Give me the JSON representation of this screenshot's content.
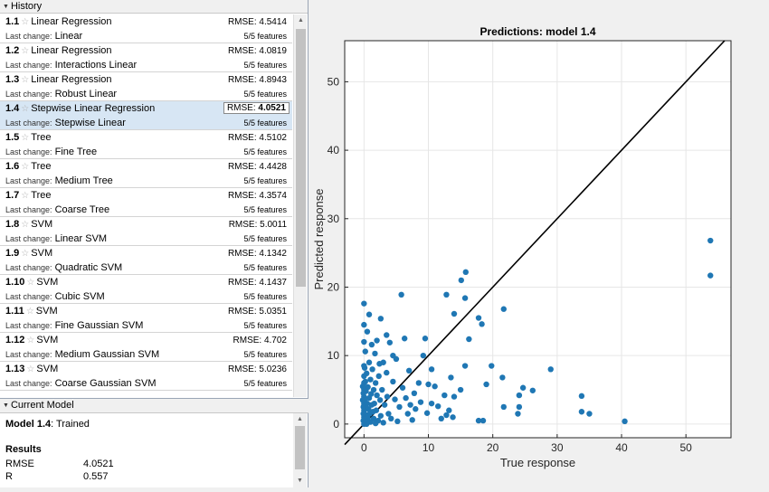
{
  "history": {
    "title": "History",
    "items": [
      {
        "num": "1.1",
        "name": "Linear Regression",
        "last_change_label": "Last change:",
        "last_change": "Linear",
        "rmse_label": "RMSE:",
        "rmse": "4.5414",
        "features": "5/5 features"
      },
      {
        "num": "1.2",
        "name": "Linear Regression",
        "last_change_label": "Last change:",
        "last_change": "Interactions Linear",
        "rmse_label": "RMSE:",
        "rmse": "4.0819",
        "features": "5/5 features"
      },
      {
        "num": "1.3",
        "name": "Linear Regression",
        "last_change_label": "Last change:",
        "last_change": "Robust Linear",
        "rmse_label": "RMSE:",
        "rmse": "4.8943",
        "features": "5/5 features"
      },
      {
        "num": "1.4",
        "name": "Stepwise Linear Regression",
        "last_change_label": "Last change:",
        "last_change": "Stepwise Linear",
        "rmse_label": "RMSE:",
        "rmse": "4.0521",
        "features": "5/5 features"
      },
      {
        "num": "1.5",
        "name": "Tree",
        "last_change_label": "Last change:",
        "last_change": "Fine Tree",
        "rmse_label": "RMSE:",
        "rmse": "4.5102",
        "features": "5/5 features"
      },
      {
        "num": "1.6",
        "name": "Tree",
        "last_change_label": "Last change:",
        "last_change": "Medium Tree",
        "rmse_label": "RMSE:",
        "rmse": "4.4428",
        "features": "5/5 features"
      },
      {
        "num": "1.7",
        "name": "Tree",
        "last_change_label": "Last change:",
        "last_change": "Coarse Tree",
        "rmse_label": "RMSE:",
        "rmse": "4.3574",
        "features": "5/5 features"
      },
      {
        "num": "1.8",
        "name": "SVM",
        "last_change_label": "Last change:",
        "last_change": "Linear SVM",
        "rmse_label": "RMSE:",
        "rmse": "5.0011",
        "features": "5/5 features"
      },
      {
        "num": "1.9",
        "name": "SVM",
        "last_change_label": "Last change:",
        "last_change": "Quadratic SVM",
        "rmse_label": "RMSE:",
        "rmse": "4.1342",
        "features": "5/5 features"
      },
      {
        "num": "1.10",
        "name": "SVM",
        "last_change_label": "Last change:",
        "last_change": "Cubic SVM",
        "rmse_label": "RMSE:",
        "rmse": "4.1437",
        "features": "5/5 features"
      },
      {
        "num": "1.11",
        "name": "SVM",
        "last_change_label": "Last change:",
        "last_change": "Fine Gaussian SVM",
        "rmse_label": "RMSE:",
        "rmse": "5.0351",
        "features": "5/5 features"
      },
      {
        "num": "1.12",
        "name": "SVM",
        "last_change_label": "Last change:",
        "last_change": "Medium Gaussian SVM",
        "rmse_label": "RMSE:",
        "rmse": "4.702",
        "features": "5/5 features"
      },
      {
        "num": "1.13",
        "name": "SVM",
        "last_change_label": "Last change:",
        "last_change": "Coarse Gaussian SVM",
        "rmse_label": "RMSE:",
        "rmse": "5.0236",
        "features": "5/5 features"
      }
    ]
  },
  "current_model": {
    "title": "Current Model",
    "model_label": "Model 1.4",
    "status": ": Trained",
    "results_label": "Results",
    "metrics": [
      {
        "name": "RMSE",
        "value": "4.0521"
      },
      {
        "name": "R",
        "value": "0.557"
      }
    ]
  },
  "colors": {
    "points": "#1f77b4",
    "selected_row": "#d7e6f4",
    "line": "#000000"
  },
  "chart_data": {
    "type": "scatter",
    "title": "Predictions: model 1.4",
    "xlabel": "True response",
    "ylabel": "Predicted response",
    "xlim": [
      -3,
      57
    ],
    "ylim": [
      -2,
      56
    ],
    "xticks": [
      0,
      10,
      20,
      30,
      40,
      50
    ],
    "yticks": [
      0,
      10,
      20,
      30,
      40,
      50
    ],
    "grid": true,
    "reference_line": {
      "x": [
        -3,
        56
      ],
      "y": [
        -3,
        56
      ]
    },
    "series": [
      {
        "points": [
          [
            53.8,
            26.8
          ],
          [
            53.8,
            21.7
          ],
          [
            40.5,
            0.4
          ],
          [
            35,
            1.5
          ],
          [
            33.8,
            4.1
          ],
          [
            33.8,
            1.8
          ],
          [
            29,
            8
          ],
          [
            26.2,
            4.9
          ],
          [
            24.7,
            5.3
          ],
          [
            24.1,
            4.2
          ],
          [
            24.1,
            2.5
          ],
          [
            23.9,
            1.5
          ],
          [
            21.7,
            2.5
          ],
          [
            21.7,
            16.8
          ],
          [
            21.5,
            6.8
          ],
          [
            19.8,
            8.5
          ],
          [
            19,
            5.8
          ],
          [
            18.5,
            0.5
          ],
          [
            17.8,
            0.5
          ],
          [
            18.3,
            14.6
          ],
          [
            17.8,
            15.5
          ],
          [
            15.8,
            22.2
          ],
          [
            15.1,
            21
          ],
          [
            14,
            16.1
          ],
          [
            12.8,
            18.9
          ],
          [
            15.7,
            18.4
          ],
          [
            16.3,
            12.4
          ],
          [
            15.7,
            8.5
          ],
          [
            15,
            5
          ],
          [
            14,
            4
          ],
          [
            13.5,
            6.8
          ],
          [
            13.2,
            2
          ],
          [
            12.8,
            1.3
          ],
          [
            12,
            0.8
          ],
          [
            11,
            5.5
          ],
          [
            10.5,
            8
          ],
          [
            10.5,
            3
          ],
          [
            9.8,
            1.6
          ],
          [
            9.5,
            12.5
          ],
          [
            9.2,
            10
          ],
          [
            8.5,
            6
          ],
          [
            8,
            2.2
          ],
          [
            7.8,
            4.5
          ],
          [
            7,
            7.8
          ],
          [
            6.8,
            1.5
          ],
          [
            6.3,
            12.5
          ],
          [
            6,
            5.3
          ],
          [
            5.8,
            18.9
          ],
          [
            5.5,
            2.5
          ],
          [
            5,
            9.5
          ],
          [
            4.8,
            3.6
          ],
          [
            4.5,
            6.2
          ],
          [
            4.2,
            0.8
          ],
          [
            4,
            11.9
          ],
          [
            3.8,
            1.5
          ],
          [
            3.6,
            4
          ],
          [
            3.5,
            7.5
          ],
          [
            3.2,
            2.8
          ],
          [
            3,
            9
          ],
          [
            2.8,
            5
          ],
          [
            2.6,
            1.2
          ],
          [
            2.5,
            3.5
          ],
          [
            2.3,
            7
          ],
          [
            2.2,
            0.5
          ],
          [
            2,
            12.2
          ],
          [
            2,
            4.2
          ],
          [
            1.9,
            2
          ],
          [
            1.8,
            6
          ],
          [
            1.7,
            10.3
          ],
          [
            1.6,
            3
          ],
          [
            1.5,
            0.8
          ],
          [
            1.5,
            5
          ],
          [
            1.4,
            1.8
          ],
          [
            1.3,
            8
          ],
          [
            1.2,
            2.8
          ],
          [
            1.1,
            4.4
          ],
          [
            1,
            0.3
          ],
          [
            1,
            6.5
          ],
          [
            0.9,
            1.5
          ],
          [
            0.8,
            3.8
          ],
          [
            0.8,
            9
          ],
          [
            0.7,
            2.2
          ],
          [
            0.6,
            0.8
          ],
          [
            0.6,
            5.4
          ],
          [
            0.5,
            1.2
          ],
          [
            0.5,
            3
          ],
          [
            0.4,
            7.4
          ],
          [
            0.4,
            0
          ],
          [
            0.3,
            4.8
          ],
          [
            0.3,
            2.4
          ],
          [
            0.2,
            1.4
          ],
          [
            0.2,
            6.2
          ],
          [
            0.2,
            10.6
          ],
          [
            0.1,
            0.6
          ],
          [
            0.1,
            3.4
          ],
          [
            0.1,
            8.2
          ],
          [
            0,
            0
          ],
          [
            0,
            1
          ],
          [
            0,
            2
          ],
          [
            0,
            3
          ],
          [
            0,
            4
          ],
          [
            0,
            5
          ],
          [
            0,
            6
          ],
          [
            0,
            7
          ],
          [
            0,
            8.5
          ],
          [
            0,
            14.5
          ],
          [
            0,
            17.6
          ],
          [
            0,
            12
          ],
          [
            -0.1,
            1.5
          ],
          [
            -0.1,
            2.5
          ],
          [
            -0.1,
            4.5
          ],
          [
            -0.1,
            0.5
          ],
          [
            -0.2,
            3.5
          ],
          [
            -0.2,
            5.5
          ],
          [
            0.5,
            13.5
          ],
          [
            1.2,
            11.6
          ],
          [
            2.6,
            15.4
          ],
          [
            3.5,
            13
          ],
          [
            4.5,
            10
          ],
          [
            0.8,
            16
          ],
          [
            7.5,
            0.6
          ],
          [
            8.8,
            3.2
          ],
          [
            10,
            5.8
          ],
          [
            11.5,
            2.6
          ],
          [
            12.5,
            4.2
          ],
          [
            13.8,
            1
          ],
          [
            5.2,
            0.4
          ],
          [
            6.5,
            3.8
          ],
          [
            7.2,
            2.8
          ],
          [
            3,
            0.2
          ],
          [
            1.8,
            0.1
          ],
          [
            2.4,
            8.8
          ]
        ]
      }
    ]
  }
}
